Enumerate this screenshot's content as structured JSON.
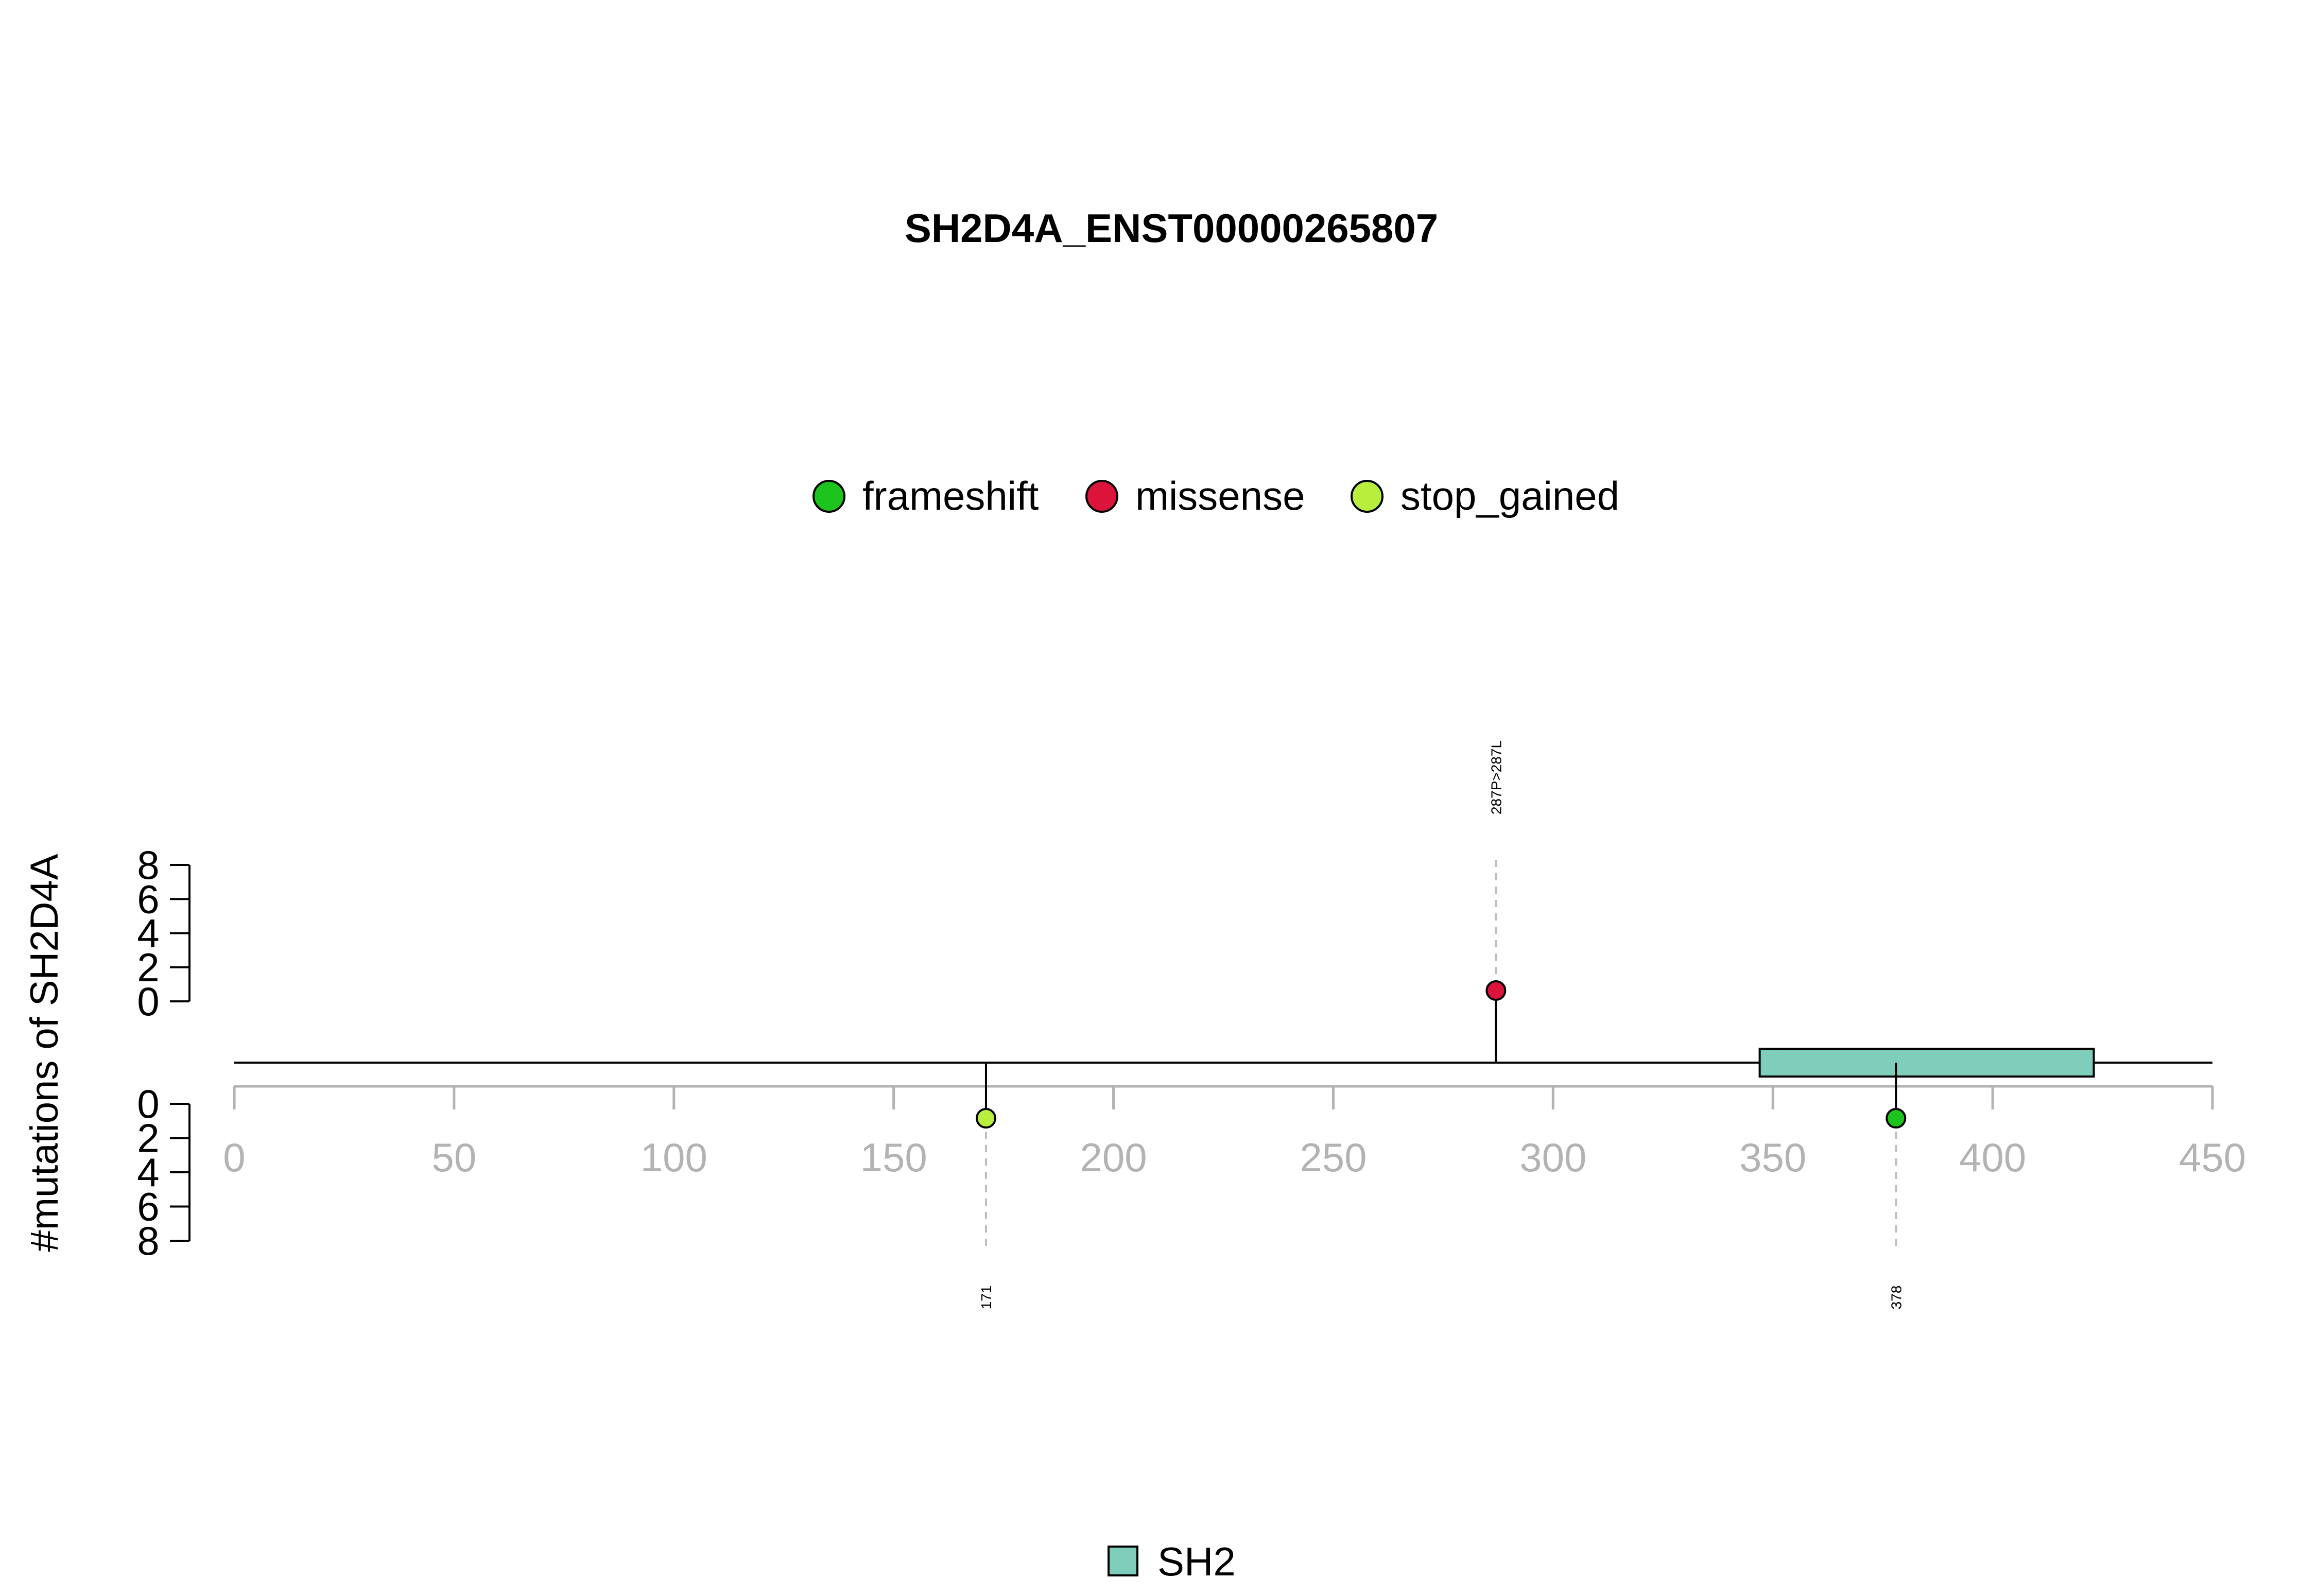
{
  "chart_data": {
    "type": "lollipop",
    "title": "SH2D4A_ENST00000265807",
    "ylabel": "#mutations of SH2D4A",
    "x_ticks": [
      0,
      50,
      100,
      150,
      200,
      250,
      300,
      350,
      400,
      450
    ],
    "xlim": [
      0,
      450
    ],
    "y_ticks_top": [
      0,
      2,
      4,
      6,
      8
    ],
    "y_ticks_bottom": [
      0,
      2,
      4,
      6,
      8
    ],
    "legend": [
      {
        "label": "frameshift",
        "color": "#1DC41D"
      },
      {
        "label": "missense",
        "color": "#DC143C"
      },
      {
        "label": "stop_gained",
        "color": "#B8EE3C"
      }
    ],
    "mutations_above": [
      {
        "position": 287,
        "count": 1,
        "type": "missense",
        "label": "287P>287L"
      }
    ],
    "mutations_below": [
      {
        "position": 171,
        "count": 1,
        "type": "stop_gained",
        "label": "171"
      },
      {
        "position": 378,
        "count": 1,
        "type": "frameshift",
        "label": "378"
      }
    ],
    "domains": [
      {
        "name": "SH2",
        "start": 347,
        "end": 423,
        "color": "#7FCDBB"
      }
    ],
    "domain_legend": [
      {
        "label": "SH2",
        "color": "#7FCDBB"
      }
    ]
  }
}
